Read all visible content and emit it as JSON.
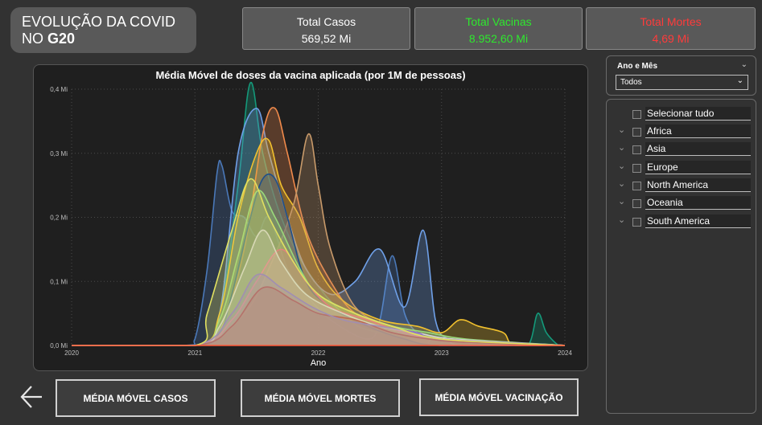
{
  "header": {
    "title_line1": "EVOLUÇÃO DA COVID",
    "title_line2_prefix": "NO ",
    "title_line2_bold": "G20"
  },
  "kpis": [
    {
      "label": "Total Casos",
      "value": "569,52 Mi",
      "color": "#ffffff"
    },
    {
      "label": "Total Vacinas",
      "value": "8.952,60 Mi",
      "color": "#2ee82e"
    },
    {
      "label": "Total Mortes",
      "value": "4,69 Mi",
      "color": "#ff3b3b"
    }
  ],
  "filter": {
    "title": "Ano e Mês",
    "selected": "Todos"
  },
  "continent_list": {
    "select_all": "Selecionar tudo",
    "items": [
      "Africa",
      "Asia",
      "Europe",
      "North America",
      "Oceania",
      "South America"
    ]
  },
  "buttons": {
    "cases": "MÉDIA MÓVEL CASOS",
    "deaths": "MÉDIA MÓVEL MORTES",
    "vaccination": "MÉDIA MÓVEL VACINAÇÃO"
  },
  "chart_data": {
    "type": "area",
    "title": "Média Móvel de doses da vacina aplicada (por 1M de pessoas)",
    "xlabel": "Ano",
    "ylabel": "",
    "x_ticks": [
      "2020",
      "2021",
      "2022",
      "2023",
      "2024"
    ],
    "y_ticks": [
      "0,0 Mi",
      "0,1 Mi",
      "0,2 Mi",
      "0,3 Mi",
      "0,4 Mi"
    ],
    "xlim": [
      2020.0,
      2024.0
    ],
    "ylim": [
      0,
      0.4
    ],
    "grid": true,
    "legend": "none",
    "series": [
      {
        "color": "#4a78b8",
        "x": [
          2020.0,
          2020.9,
          2021.0,
          2021.1,
          2021.18,
          2021.22,
          2021.3,
          2021.4,
          2021.5,
          2021.6,
          2021.75,
          2021.9,
          2022.1,
          2022.4,
          2022.5,
          2022.6,
          2022.7,
          2022.8,
          2022.9,
          2023.0,
          2024.0
        ],
        "y": [
          0,
          0,
          0.01,
          0.12,
          0.27,
          0.28,
          0.21,
          0.2,
          0.17,
          0.2,
          0.12,
          0.08,
          0.04,
          0.01,
          0.04,
          0.14,
          0.05,
          0.02,
          0.01,
          0,
          0
        ]
      },
      {
        "color": "#14997a",
        "x": [
          2020.0,
          2021.0,
          2021.2,
          2021.35,
          2021.45,
          2021.55,
          2021.7,
          2021.9,
          2022.2,
          2022.5,
          2023.5,
          2023.7,
          2023.78,
          2023.85,
          2023.95,
          2024.0
        ],
        "y": [
          0,
          0,
          0.05,
          0.25,
          0.41,
          0.3,
          0.2,
          0.12,
          0.05,
          0.02,
          0,
          0,
          0.05,
          0.02,
          0,
          0
        ]
      },
      {
        "color": "#6fa0e8",
        "x": [
          2020.0,
          2021.0,
          2021.2,
          2021.35,
          2021.5,
          2021.6,
          2021.75,
          2021.9,
          2022.1,
          2022.3,
          2022.5,
          2022.7,
          2022.85,
          2022.95,
          2023.05,
          2023.2,
          2024.0
        ],
        "y": [
          0,
          0,
          0.05,
          0.3,
          0.37,
          0.3,
          0.2,
          0.12,
          0.08,
          0.1,
          0.15,
          0.06,
          0.18,
          0.04,
          0.01,
          0,
          0
        ]
      },
      {
        "color": "#f08a4b",
        "x": [
          2020.0,
          2021.0,
          2021.2,
          2021.4,
          2021.55,
          2021.65,
          2021.75,
          2021.9,
          2022.1,
          2022.3,
          2022.6,
          2022.8,
          2023.0,
          2024.0
        ],
        "y": [
          0,
          0,
          0.02,
          0.15,
          0.33,
          0.37,
          0.3,
          0.18,
          0.1,
          0.05,
          0.03,
          0.02,
          0.01,
          0
        ]
      },
      {
        "color": "#f2c12e",
        "x": [
          2020.0,
          2021.0,
          2021.2,
          2021.35,
          2021.5,
          2021.6,
          2021.7,
          2021.85,
          2022.0,
          2022.2,
          2022.5,
          2022.8,
          2023.0,
          2023.15,
          2023.3,
          2023.5,
          2023.6,
          2024.0
        ],
        "y": [
          0,
          0,
          0.05,
          0.2,
          0.3,
          0.32,
          0.25,
          0.2,
          0.12,
          0.07,
          0.04,
          0.03,
          0.02,
          0.04,
          0.03,
          0.02,
          0,
          0
        ]
      },
      {
        "color": "#c89a6a",
        "x": [
          2020.0,
          2021.0,
          2021.4,
          2021.6,
          2021.8,
          2021.92,
          2022.0,
          2022.1,
          2022.3,
          2022.6,
          2023.0,
          2024.0
        ],
        "y": [
          0,
          0,
          0.05,
          0.12,
          0.22,
          0.33,
          0.25,
          0.15,
          0.06,
          0.03,
          0.01,
          0
        ]
      },
      {
        "color": "#1f4f8a",
        "x": [
          2020.0,
          2021.0,
          2021.2,
          2021.3,
          2021.45,
          2021.55,
          2021.65,
          2021.75,
          2021.9,
          2022.1,
          2022.4,
          2022.7,
          2023.0,
          2024.0
        ],
        "y": [
          0,
          0,
          0.02,
          0.08,
          0.2,
          0.26,
          0.26,
          0.2,
          0.1,
          0.06,
          0.03,
          0.01,
          0,
          0
        ]
      },
      {
        "color": "#9ad97a",
        "x": [
          2020.0,
          2021.0,
          2021.2,
          2021.35,
          2021.5,
          2021.65,
          2021.85,
          2022.0,
          2022.3,
          2022.6,
          2022.9,
          2023.2,
          2024.0
        ],
        "y": [
          0,
          0,
          0.04,
          0.14,
          0.24,
          0.2,
          0.12,
          0.08,
          0.05,
          0.03,
          0.02,
          0.01,
          0
        ]
      },
      {
        "color": "#e85d8a",
        "x": [
          2020.0,
          2021.0,
          2021.3,
          2021.5,
          2021.7,
          2021.9,
          2022.1,
          2022.4,
          2022.7,
          2023.0,
          2024.0
        ],
        "y": [
          0,
          0,
          0.04,
          0.1,
          0.15,
          0.1,
          0.06,
          0.04,
          0.02,
          0.01,
          0
        ]
      },
      {
        "color": "#d6d6d6",
        "x": [
          2020.0,
          2021.0,
          2021.2,
          2021.4,
          2021.55,
          2021.7,
          2021.9,
          2022.2,
          2022.5,
          2022.8,
          2023.1,
          2024.0
        ],
        "y": [
          0,
          0,
          0.03,
          0.12,
          0.18,
          0.13,
          0.08,
          0.05,
          0.03,
          0.02,
          0.01,
          0
        ]
      },
      {
        "color": "#b03a4a",
        "x": [
          2020.0,
          2021.0,
          2021.3,
          2021.55,
          2021.8,
          2022.0,
          2022.3,
          2022.6,
          2022.9,
          2023.2,
          2024.0
        ],
        "y": [
          0,
          0,
          0.03,
          0.09,
          0.07,
          0.05,
          0.04,
          0.02,
          0.01,
          0.005,
          0
        ]
      },
      {
        "color": "#8a6fd1",
        "x": [
          2020.0,
          2021.0,
          2021.3,
          2021.5,
          2021.7,
          2021.95,
          2022.2,
          2022.5,
          2022.8,
          2023.0,
          2024.0
        ],
        "y": [
          0,
          0,
          0.05,
          0.11,
          0.09,
          0.06,
          0.04,
          0.03,
          0.02,
          0.01,
          0
        ]
      },
      {
        "color": "#e0e060",
        "x": [
          2020.0,
          2021.0,
          2021.1,
          2021.3,
          2021.45,
          2021.6,
          2021.8,
          2022.0,
          2022.3,
          2022.6,
          2023.0,
          2024.0
        ],
        "y": [
          0,
          0,
          0.05,
          0.18,
          0.26,
          0.2,
          0.13,
          0.08,
          0.05,
          0.03,
          0.01,
          0
        ]
      }
    ]
  }
}
